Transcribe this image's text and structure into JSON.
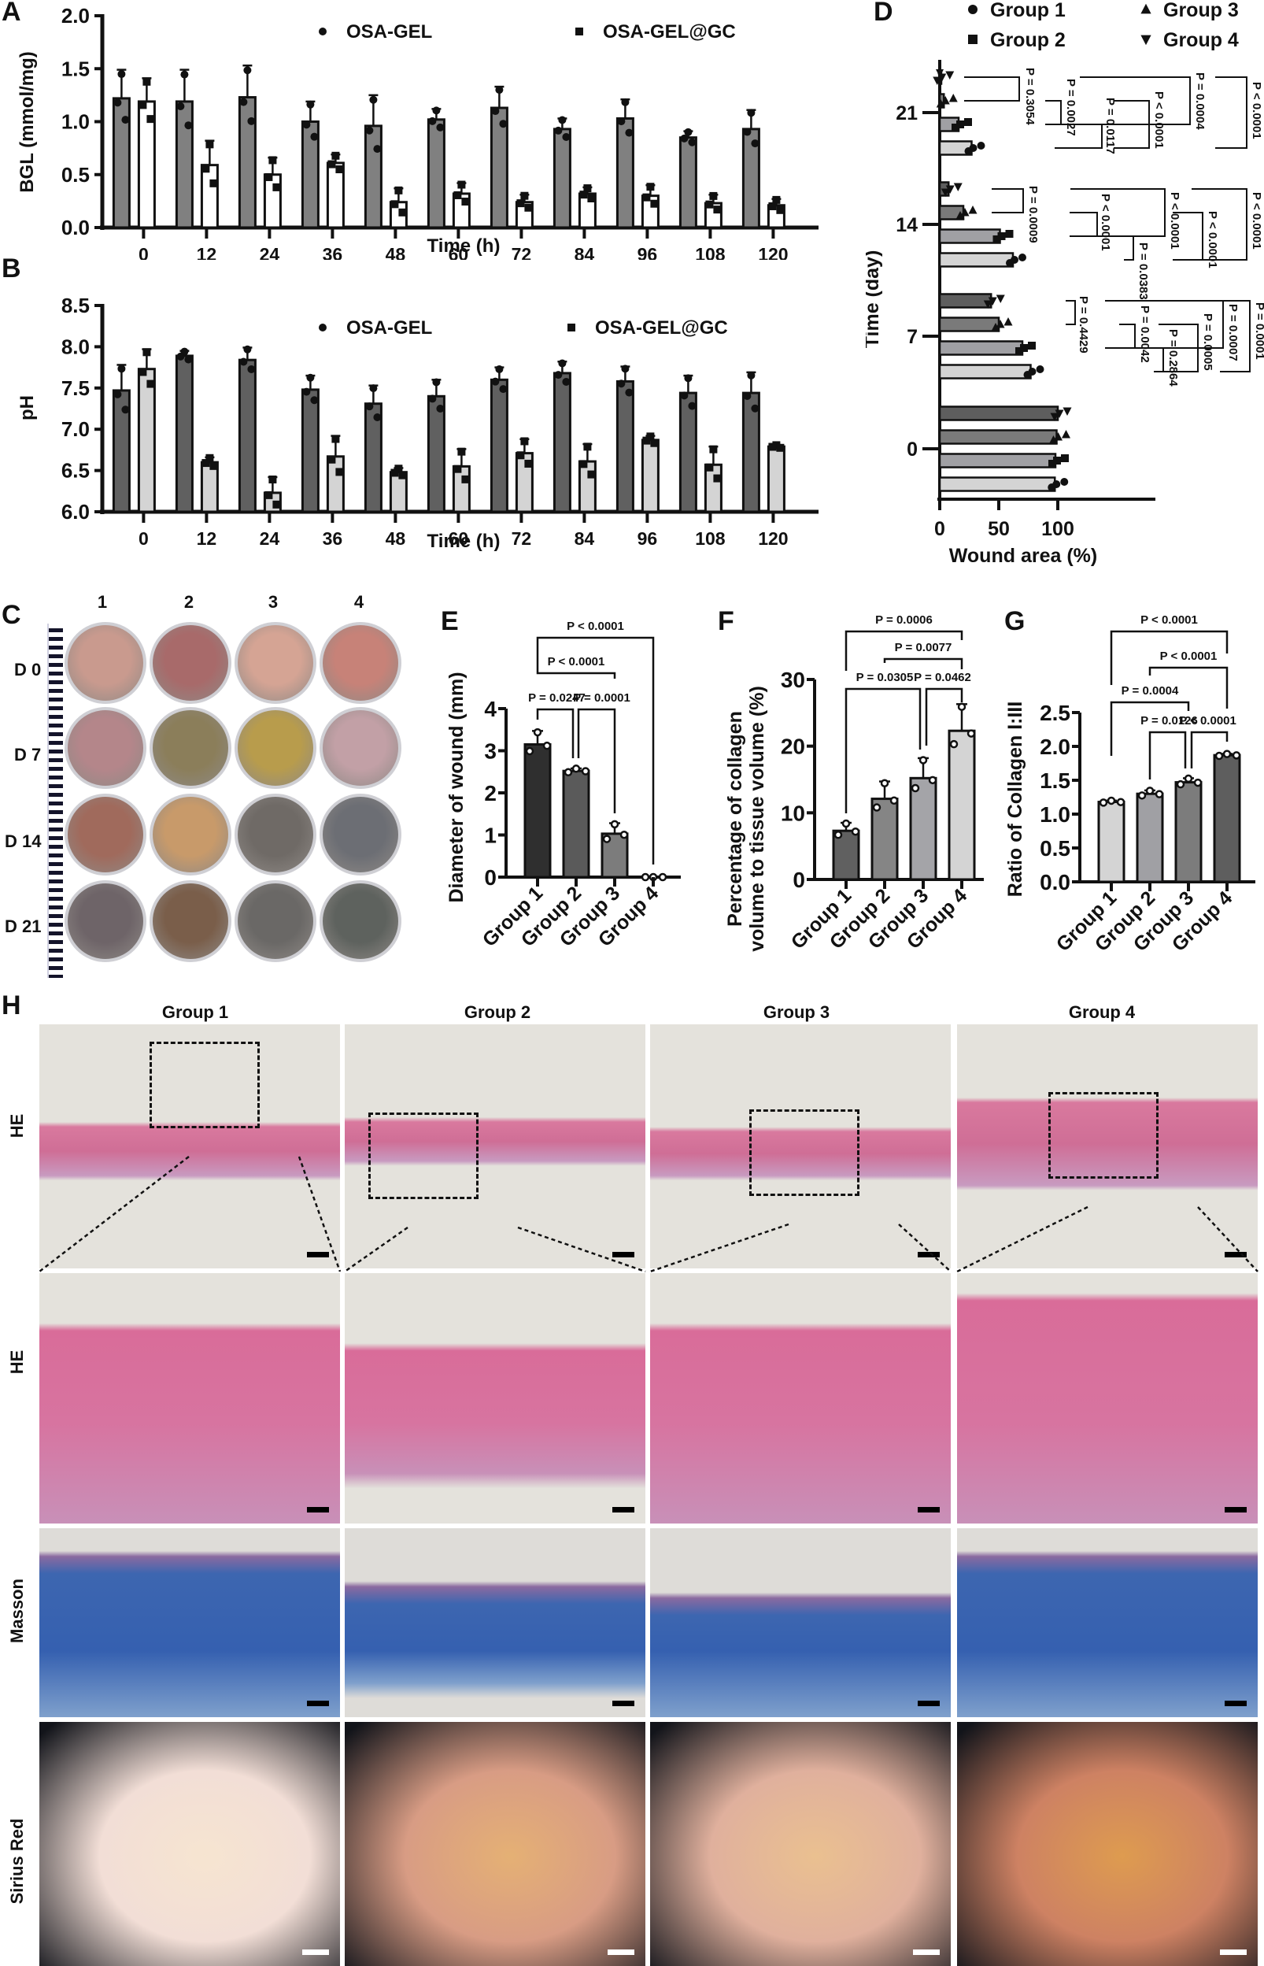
{
  "panels": {
    "A": {
      "label": "A"
    },
    "B": {
      "label": "B"
    },
    "C": {
      "label": "C",
      "columns": [
        "1",
        "2",
        "3",
        "4"
      ],
      "rows": [
        "D 0",
        "D 7",
        "D 14",
        "D 21"
      ]
    },
    "D": {
      "label": "D"
    },
    "E": {
      "label": "E"
    },
    "F": {
      "label": "F"
    },
    "G": {
      "label": "G"
    },
    "H": {
      "label": "H",
      "columns": [
        "Group 1",
        "Group 2",
        "Group 3",
        "Group 4"
      ],
      "rows": [
        "HE",
        "HE",
        "Masson",
        "Sirius Red"
      ]
    }
  },
  "colors": {
    "osa_gel_A": "#808080",
    "osa_gel_gc_A": "#ffffff",
    "osa_gel_B": "#606060",
    "osa_gel_gc_B": "#d4d4d4",
    "group1_D": "#d4d4d4",
    "group2_D": "#a0a0a4",
    "group3_D": "#7a7a7a",
    "group4_D": "#5e5e5e",
    "he_bg": "#e4e2dc",
    "he_tissue": "#d86a95",
    "masson_tissue": "#3d66b0",
    "sirius_bg": "#12141a",
    "sirius_fiber": "#d89048"
  },
  "chart_data": [
    {
      "id": "A",
      "type": "bar",
      "title": "",
      "xlabel": "Time (h)",
      "ylabel": "BGL (mmol/mg)",
      "ylim": [
        0,
        2.0
      ],
      "yticks": [
        "0.0",
        "0.5",
        "1.0",
        "1.5",
        "2.0"
      ],
      "categories": [
        "0",
        "12",
        "24",
        "36",
        "48",
        "60",
        "72",
        "84",
        "96",
        "108",
        "120"
      ],
      "legend": [
        "OSA-GEL",
        "OSA-GEL@GC"
      ],
      "legend_position": "top",
      "series": [
        {
          "name": "OSA-GEL",
          "marker": "circle",
          "values": [
            1.22,
            1.19,
            1.23,
            1.0,
            0.96,
            1.02,
            1.13,
            0.93,
            1.03,
            0.85,
            0.93
          ],
          "errors": [
            0.27,
            0.3,
            0.3,
            0.19,
            0.29,
            0.1,
            0.2,
            0.1,
            0.18,
            0.06,
            0.18
          ]
        },
        {
          "name": "OSA-GEL@GC",
          "marker": "square",
          "values": [
            1.19,
            0.59,
            0.5,
            0.61,
            0.24,
            0.32,
            0.24,
            0.32,
            0.3,
            0.23,
            0.21
          ],
          "errors": [
            0.22,
            0.23,
            0.16,
            0.08,
            0.13,
            0.1,
            0.07,
            0.06,
            0.1,
            0.08,
            0.06
          ]
        }
      ]
    },
    {
      "id": "B",
      "type": "bar",
      "title": "",
      "xlabel": "Time (h)",
      "ylabel": "pH",
      "ylim": [
        6.0,
        8.5
      ],
      "yticks": [
        "6.0",
        "6.5",
        "7.0",
        "7.5",
        "8.0",
        "8.5"
      ],
      "categories": [
        "0",
        "12",
        "24",
        "36",
        "48",
        "60",
        "72",
        "84",
        "96",
        "108",
        "120"
      ],
      "legend": [
        "OSA-GEL",
        "OSA-GEL@GC"
      ],
      "legend_position": "top",
      "series": [
        {
          "name": "OSA-GEL",
          "marker": "circle",
          "values": [
            7.47,
            7.89,
            7.84,
            7.48,
            7.31,
            7.4,
            7.6,
            7.68,
            7.58,
            7.44,
            7.44
          ],
          "errors": [
            0.31,
            0.06,
            0.15,
            0.17,
            0.22,
            0.2,
            0.15,
            0.14,
            0.18,
            0.21,
            0.25
          ]
        },
        {
          "name": "OSA-GEL@GC",
          "marker": "square",
          "values": [
            7.73,
            6.6,
            6.23,
            6.67,
            6.48,
            6.55,
            6.71,
            6.61,
            6.87,
            6.57,
            6.79
          ],
          "errors": [
            0.24,
            0.06,
            0.19,
            0.25,
            0.05,
            0.21,
            0.17,
            0.21,
            0.05,
            0.22,
            0.02
          ]
        }
      ]
    },
    {
      "id": "D",
      "type": "bar",
      "orientation": "horizontal",
      "title": "",
      "xlabel": "Wound area (%)",
      "ylabel": "Time (day)",
      "xlim": [
        0,
        125
      ],
      "xticks": [
        "0",
        "50",
        "100"
      ],
      "categories": [
        "0",
        "7",
        "14",
        "21"
      ],
      "legend": [
        "Group 1",
        "Group 2",
        "Group 3",
        "Group 4"
      ],
      "legend_markers": [
        "circle",
        "square",
        "triangle-up",
        "triangle-down"
      ],
      "legend_position": "top",
      "series": [
        {
          "name": "Group 1",
          "values": [
            97.5,
            77.0,
            62.0,
            27.0
          ]
        },
        {
          "name": "Group 2",
          "values": [
            98.0,
            70.0,
            51.0,
            16.0
          ]
        },
        {
          "name": "Group 3",
          "values": [
            99.0,
            50.0,
            20.0,
            3.5
          ]
        },
        {
          "name": "Group 4",
          "values": [
            100.0,
            43.5,
            7.5,
            0.5
          ]
        }
      ],
      "annotations": {
        "day21": [
          "P = 0.3054",
          "P = 0.0027",
          "P = 0.0117",
          "P < 0.0001",
          "P = 0.0004",
          "P < 0.0001"
        ],
        "day14": [
          "P = 0.0009",
          "P < 0.0001",
          "P = 0.0383",
          "P < 0.0001",
          "P < 0.0001",
          "P < 0.0001"
        ],
        "day7": [
          "P = 0.4429",
          "P = 0.0042",
          "P = 0.2864",
          "P = 0.0005",
          "P = 0.0007",
          "P = 0.0001"
        ]
      }
    },
    {
      "id": "E",
      "type": "bar",
      "title": "",
      "xlabel": "",
      "ylabel": "Diameter of wound (mm)",
      "ylim": [
        0,
        4
      ],
      "yticks": [
        "0",
        "1",
        "2",
        "3",
        "4"
      ],
      "categories": [
        "Group 1",
        "Group 2",
        "Group 3",
        "Group 4"
      ],
      "values": [
        3.15,
        2.52,
        1.03,
        0.0
      ],
      "errors": [
        0.32,
        0.06,
        0.25,
        0.0
      ],
      "annotations": [
        "P = 0.0247",
        "P = 0.0001",
        "P < 0.0001",
        "P < 0.0001"
      ]
    },
    {
      "id": "F",
      "type": "bar",
      "title": "",
      "xlabel": "",
      "ylabel": "Percentage of collagen volume to tissue volume (%)",
      "ylim": [
        0,
        30
      ],
      "yticks": [
        "0",
        "10",
        "20",
        "30"
      ],
      "categories": [
        "Group 1",
        "Group 2",
        "Group 3",
        "Group 4"
      ],
      "values": [
        7.3,
        12.1,
        15.2,
        22.3
      ],
      "errors": [
        1.2,
        2.6,
        3.0,
        4.0
      ],
      "annotations": [
        "P = 0.0305",
        "P = 0.0462",
        "P = 0.0077",
        "P = 0.0006"
      ]
    },
    {
      "id": "G",
      "type": "bar",
      "title": "",
      "xlabel": "",
      "ylabel": "Ratio of Collagen I:III",
      "ylim": [
        0,
        2.5
      ],
      "yticks": [
        "0.0",
        "0.5",
        "1.0",
        "1.5",
        "2.0",
        "2.5"
      ],
      "categories": [
        "Group 1",
        "Group 2",
        "Group 3",
        "Group 4"
      ],
      "values": [
        1.18,
        1.3,
        1.47,
        1.87
      ],
      "errors": [
        0.02,
        0.05,
        0.06,
        0.02
      ],
      "annotations": [
        "P = 0.0126",
        "P < 0.0001",
        "P = 0.0004",
        "P < 0.0001",
        "P < 0.0001"
      ]
    }
  ]
}
